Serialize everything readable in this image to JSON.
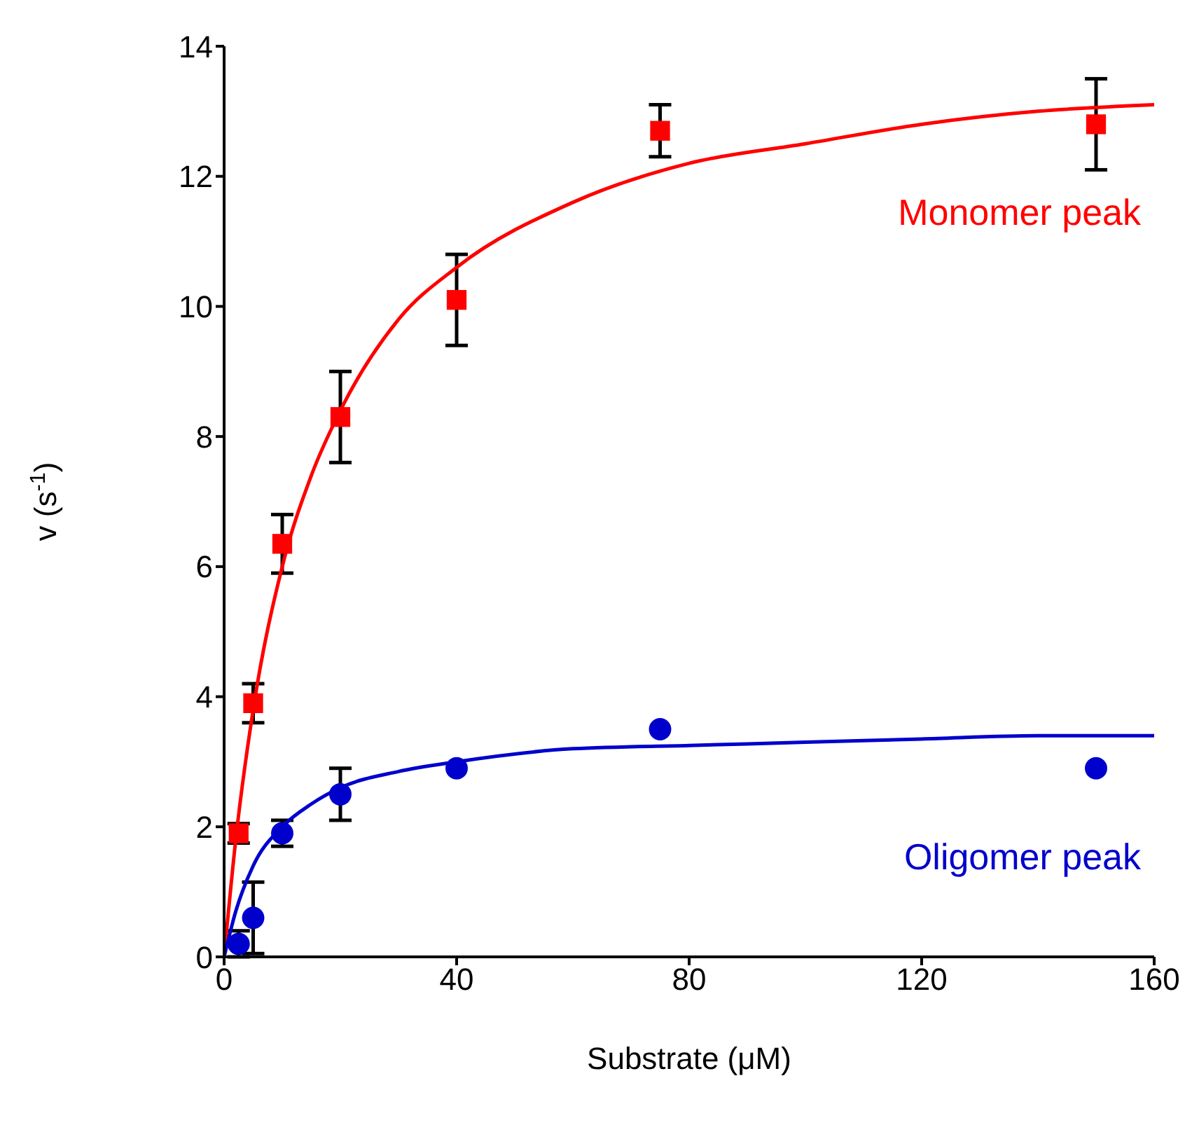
{
  "chart_data": {
    "type": "scatter",
    "xlabel": "Substrate (μM)",
    "ylabel": "v (s$^{-1}$)",
    "xlim": [
      0,
      160
    ],
    "xticks": [
      0,
      40,
      80,
      120,
      160
    ],
    "ylim": [
      0,
      14
    ],
    "yticks": [
      0,
      2,
      4,
      6,
      8,
      10,
      12,
      14
    ],
    "grid": false,
    "legend": false,
    "series": [
      {
        "name": "Monomer peak",
        "marker": "square",
        "color": "#ff0000",
        "x": [
          2.5,
          5,
          10,
          20,
          40,
          75,
          150
        ],
        "values": [
          1.9,
          3.9,
          6.35,
          8.3,
          10.1,
          12.7,
          12.8
        ],
        "errors": [
          0.15,
          0.3,
          0.45,
          0.7,
          0.7,
          0.4,
          0.7
        ]
      },
      {
        "name": "Oligomer peak",
        "marker": "circle",
        "color": "#0000cc",
        "x": [
          2.5,
          5,
          10,
          20,
          40,
          75,
          150
        ],
        "values": [
          0.2,
          0.6,
          1.9,
          2.5,
          2.9,
          3.5,
          2.9
        ],
        "errors": [
          0.2,
          0.55,
          0.2,
          0.4,
          null,
          null,
          null
        ]
      },
      {
        "type": "line",
        "marker": "none",
        "color": "#ff0000",
        "x": [
          0,
          2,
          5,
          10,
          15,
          20,
          30,
          40,
          60,
          80,
          100,
          120,
          140,
          160
        ],
        "values": [
          0,
          1.8,
          3.8,
          6.0,
          7.4,
          8.4,
          9.8,
          10.6,
          11.6,
          12.2,
          12.5,
          12.8,
          13.0,
          13.1
        ]
      },
      {
        "type": "line",
        "marker": "none",
        "color": "#0000cc",
        "x": [
          0,
          2,
          5,
          10,
          15,
          20,
          30,
          40,
          60,
          80,
          100,
          120,
          140,
          160
        ],
        "values": [
          0,
          0.7,
          1.4,
          2.0,
          2.35,
          2.6,
          2.85,
          3.0,
          3.2,
          3.25,
          3.3,
          3.35,
          3.4,
          3.4
        ]
      }
    ]
  }
}
